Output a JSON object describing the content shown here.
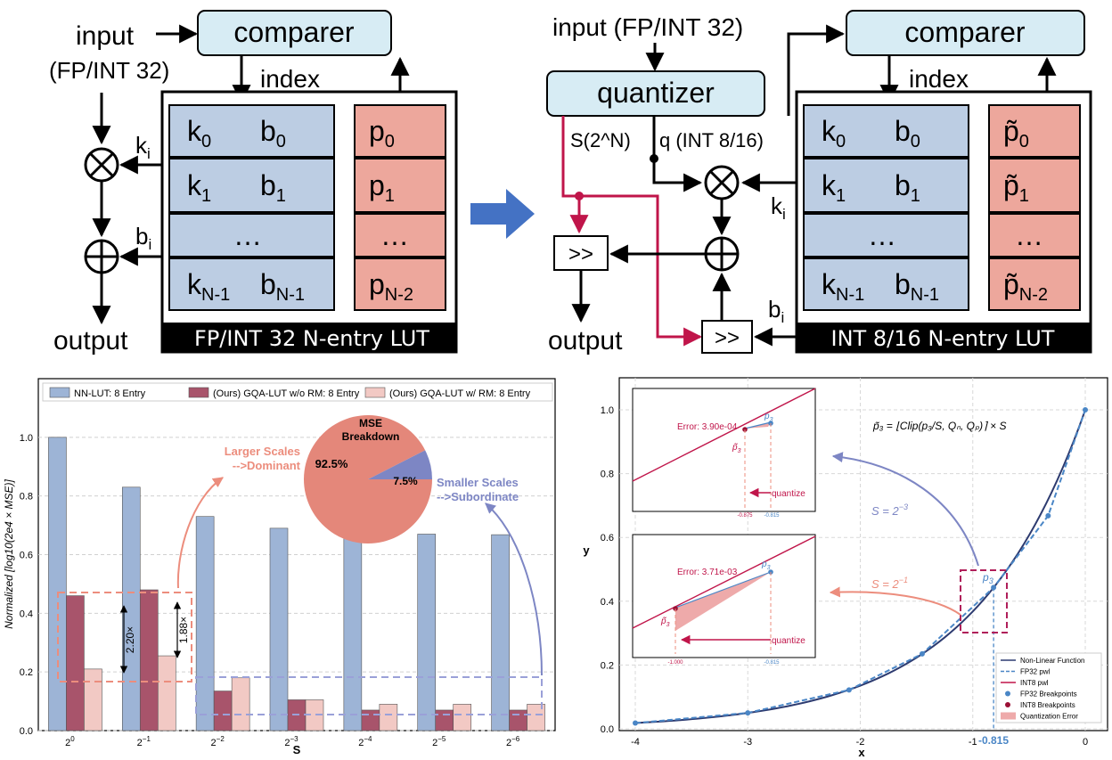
{
  "top_left": {
    "comparer": "comparer",
    "input": "input",
    "input_type": "(FP/INT 32)",
    "index": "index",
    "ki": "k",
    "ki_sub": "i",
    "bi": "b",
    "bi_sub": "i",
    "output": "output",
    "lut_title": "FP/INT 32 N-entry LUT",
    "rows": [
      {
        "k": "k",
        "ks": "0",
        "b": "b",
        "bs": "0",
        "p": "p",
        "ps": "0"
      },
      {
        "k": "k",
        "ks": "1",
        "b": "b",
        "bs": "1",
        "p": "p",
        "ps": "1"
      },
      {
        "k": "…",
        "ks": "",
        "b": "",
        "bs": "",
        "p": "…",
        "ps": ""
      },
      {
        "k": "k",
        "ks": "N-1",
        "b": "b",
        "bs": "N-1",
        "p": "p",
        "ps": "N-2"
      }
    ]
  },
  "top_right": {
    "input": "input (FP/INT 32)",
    "quantizer": "quantizer",
    "comparer": "comparer",
    "index": "index",
    "s_label": "S(2^N)",
    "q_label": "q (INT 8/16)",
    "ki": "k",
    "ki_sub": "i",
    "bi": "b",
    "bi_sub": "i",
    "shift": ">>",
    "output": "output",
    "lut_title": "INT 8/16 N-entry LUT",
    "rows": [
      {
        "k": "k",
        "ks": "0",
        "b": "b",
        "bs": "0",
        "p": "p̃",
        "ps": "0"
      },
      {
        "k": "k",
        "ks": "1",
        "b": "b",
        "bs": "1",
        "p": "p̃",
        "ps": "1"
      },
      {
        "k": "…",
        "ks": "",
        "b": "",
        "bs": "",
        "p": "…",
        "ps": ""
      },
      {
        "k": "k",
        "ks": "N-1",
        "b": "b",
        "bs": "N-1",
        "p": "p̃",
        "ps": "N-2"
      }
    ]
  },
  "bar_chart": {
    "chart_data": {
      "type": "bar",
      "categories": [
        "2^0",
        "2^-1",
        "2^-2",
        "2^-3",
        "2^-4",
        "2^-5",
        "2^-6"
      ],
      "tick_base": "2",
      "tick_exps": [
        "0",
        "−1",
        "−2",
        "−3",
        "−4",
        "−5",
        "−6"
      ],
      "series": [
        {
          "name": "NN-LUT: 8 Entry",
          "color": "#9db4d6",
          "values": [
            1.0,
            0.83,
            0.73,
            0.69,
            0.675,
            0.67,
            0.668
          ]
        },
        {
          "name": "(Ours) GQA-LUT w/o RM: 8 Entry",
          "color": "#a8546b",
          "values": [
            0.46,
            0.48,
            0.135,
            0.105,
            0.07,
            0.07,
            0.07
          ]
        },
        {
          "name": "(Ours) GQA-LUT w/ RM: 8 Entry",
          "color": "#f2c9c4",
          "values": [
            0.21,
            0.255,
            0.18,
            0.105,
            0.09,
            0.09,
            0.09
          ]
        }
      ],
      "xlabel": "S",
      "ylabel": "Normalized  [log10(2e4 × MSE)]",
      "ylim": [
        0,
        1.2
      ],
      "yticks": [
        "0.0",
        "0.2",
        "0.4",
        "0.6",
        "0.8",
        "1.0"
      ],
      "grid": true,
      "legend": "top"
    },
    "ann_220": "2.20×",
    "ann_188": "1.88×",
    "larger_scales": "Larger Scales",
    "larger_dominant": "-->Dominant",
    "smaller_scales": "Smaller Scales",
    "smaller_sub": "-->Subordinate",
    "pie": {
      "title1": "MSE",
      "title2": "Breakdown",
      "values": [
        92.5,
        7.5
      ],
      "labels": [
        "92.5%",
        "7.5%"
      ],
      "colors": [
        "#e4877a",
        "#7d86c4"
      ]
    }
  },
  "line_chart": {
    "chart_data": {
      "type": "line",
      "x": [
        -4,
        -3,
        -2,
        -1,
        0
      ],
      "xticks": [
        "-4",
        "-3",
        "-2",
        "-1",
        "0"
      ],
      "yticks": [
        "0.0",
        "0.2",
        "0.4",
        "0.6",
        "0.8",
        "1.0"
      ],
      "xlim": [
        -4.0,
        0.2
      ],
      "ylim": [
        0,
        1.05
      ],
      "xlabel": "x",
      "ylabel": "y",
      "fp32_breakpoints": [
        [
          -4,
          0.018
        ],
        [
          -3,
          0.05
        ],
        [
          -2.1,
          0.122
        ],
        [
          -1.45,
          0.235
        ],
        [
          -0.815,
          0.443
        ],
        [
          -0.33,
          0.668
        ],
        [
          0,
          1.0
        ]
      ],
      "highlight_x": "-0.815",
      "legend": [
        {
          "name": "Non-Linear Function",
          "color": "#2d3b70"
        },
        {
          "name": "FP32 pwl",
          "color": "#4a86c6"
        },
        {
          "name": "INT8 pwl",
          "color": "#c0154a"
        },
        {
          "name": "FP32 Breakpoints",
          "color": "#4a86c6"
        },
        {
          "name": "INT8 Breakpoints",
          "color": "#9b1035"
        },
        {
          "name": "Quantization Error",
          "color": "#eeaaaa"
        }
      ]
    },
    "p3": "p",
    "p3_sub": "3",
    "formula": "p̃₃ = ⌊Clip(p₃/S, Qₙ, Qₚ)⌉ × S",
    "s_neg3": "S = 2",
    "s_neg3_exp": "−3",
    "s_neg1": "S = 2",
    "s_neg1_exp": "−1",
    "inset1": {
      "error": "Error: 3.90e-04",
      "quantize": "quantize",
      "x1": "-0.875",
      "x2": "-0.815"
    },
    "inset2": {
      "error": "Error: 3.71e-03",
      "quantize": "quantize",
      "x1": "-1.000",
      "x2": "-0.815"
    }
  }
}
